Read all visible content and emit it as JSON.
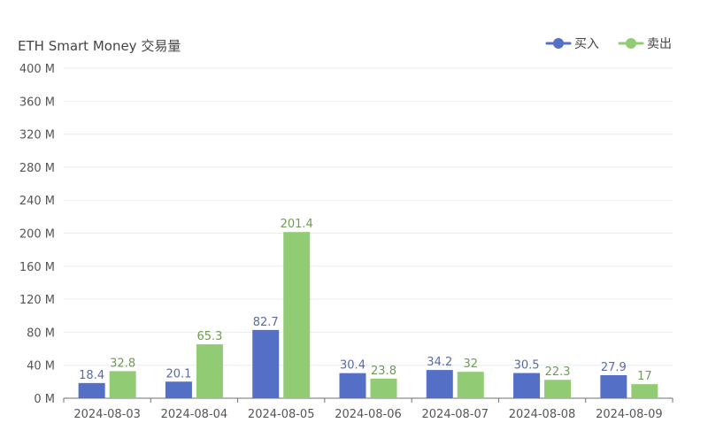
{
  "chart_data": {
    "type": "bar",
    "title": "ETH Smart Money 交易量",
    "categories": [
      "2024-08-03",
      "2024-08-04",
      "2024-08-05",
      "2024-08-06",
      "2024-08-07",
      "2024-08-08",
      "2024-08-09"
    ],
    "series": [
      {
        "name": "买入",
        "values": [
          18.4,
          20.1,
          82.7,
          30.4,
          34.2,
          30.5,
          27.9
        ],
        "labels": [
          "18.4",
          "20.1",
          "82.7",
          "30.4",
          "34.2",
          "30.5",
          "27.9"
        ],
        "color": "#5470c6",
        "label_color": "#5a6aa6"
      },
      {
        "name": "卖出",
        "values": [
          32.8,
          65.3,
          201.4,
          23.8,
          32,
          22.3,
          17
        ],
        "labels": [
          "32.8",
          "65.3",
          "201.4",
          "23.8",
          "32",
          "22.3",
          "17"
        ],
        "color": "#91cc75",
        "label_color": "#6f9a55"
      }
    ],
    "ylim": [
      0,
      400
    ],
    "yticks": [
      0,
      40,
      80,
      120,
      160,
      200,
      240,
      280,
      320,
      360,
      400
    ],
    "ytick_labels": [
      "0 M",
      "40 M",
      "80 M",
      "120 M",
      "160 M",
      "200 M",
      "240 M",
      "280 M",
      "320 M",
      "360 M",
      "400 M"
    ],
    "grid": true,
    "legend_position": "top-right",
    "xlabel": "",
    "ylabel": ""
  }
}
